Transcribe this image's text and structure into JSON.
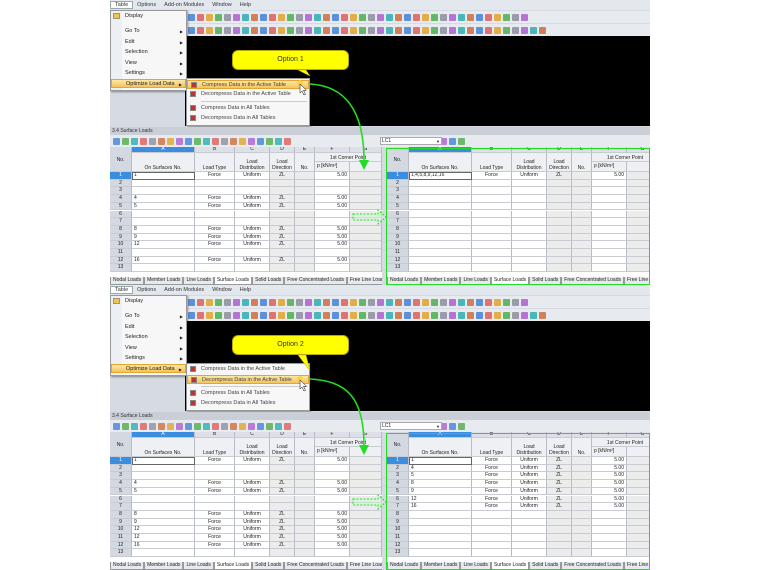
{
  "menubar": [
    "Table",
    "Options",
    "Add-on Modules",
    "Window",
    "Help"
  ],
  "menu": [
    {
      "label": "Display",
      "sub": false
    },
    {
      "label": "Go To",
      "sub": true
    },
    {
      "label": "Edit",
      "sub": true
    },
    {
      "label": "Selection",
      "sub": true
    },
    {
      "label": "View",
      "sub": true
    },
    {
      "label": "Settings",
      "sub": true
    },
    {
      "label": "Optimize Load Data",
      "sub": true
    }
  ],
  "submenu": [
    "Compress Data in the Active Table",
    "Decompress Data in the Active Table",
    "Compress Data in All Tables",
    "Decompress Data in All Tables"
  ],
  "window_title": "3.4 Surface Loads",
  "load_case": "LC1",
  "column_letters": [
    "A",
    "B",
    "C",
    "D",
    "E",
    "F",
    "G"
  ],
  "headers": {
    "no": "No.",
    "a": "On Surfaces No.",
    "b": "Load Type",
    "c1": "Load",
    "c2": "Distribution",
    "d1": "Load",
    "d2": "Direction",
    "e": "No.",
    "f1": "1st Corner Point",
    "f2": "p [kN/m²]"
  },
  "tabs": [
    "Nodal Loads",
    "Member Loads",
    "Line Loads",
    "Surface Loads",
    "Solid Loads",
    "Free Concentrated Loads",
    "Free Line Loads"
  ],
  "active_tab": "Surface Loads",
  "colors": {
    "accent_green": "#22dd22",
    "callout": "#ffff00",
    "highlight": "#f6c35a",
    "selected_row": "#3b8de0"
  },
  "panels": [
    {
      "callout": "Option 1",
      "highlighted_submenu": 0,
      "left_rows": [
        [
          "1",
          "1",
          "Force",
          "Uniform",
          "ZL",
          "",
          "5.00"
        ],
        [
          "2",
          "",
          "",
          "",
          "",
          "",
          ""
        ],
        [
          "3",
          "",
          "",
          "",
          "",
          "",
          ""
        ],
        [
          "4",
          "4",
          "Force",
          "Uniform",
          "ZL",
          "",
          "5.00"
        ],
        [
          "5",
          "5",
          "Force",
          "Uniform",
          "ZL",
          "",
          "5.00"
        ],
        [
          "6",
          "",
          "",
          "",
          "",
          "",
          ""
        ],
        [
          "7",
          "",
          "",
          "",
          "",
          "",
          ""
        ],
        [
          "8",
          "8",
          "Force",
          "Uniform",
          "ZL",
          "",
          "5.00"
        ],
        [
          "9",
          "9",
          "Force",
          "Uniform",
          "ZL",
          "",
          "5.00"
        ],
        [
          "10",
          "12",
          "Force",
          "Uniform",
          "ZL",
          "",
          "5.00"
        ],
        [
          "11",
          "",
          "",
          "",
          "",
          "",
          ""
        ],
        [
          "12",
          "16",
          "Force",
          "Uniform",
          "ZL",
          "",
          "5.00"
        ],
        [
          "13",
          "",
          "",
          "",
          "",
          "",
          ""
        ]
      ],
      "right_rows": [
        [
          "1",
          "1,4,5,8,9,12,16",
          "Force",
          "Uniform",
          "ZL",
          "",
          "5.00"
        ],
        [
          "2",
          "",
          "",
          "",
          "",
          "",
          ""
        ],
        [
          "3",
          "",
          "",
          "",
          "",
          "",
          ""
        ],
        [
          "4",
          "",
          "",
          "",
          "",
          "",
          ""
        ],
        [
          "5",
          "",
          "",
          "",
          "",
          "",
          ""
        ],
        [
          "6",
          "",
          "",
          "",
          "",
          "",
          ""
        ],
        [
          "7",
          "",
          "",
          "",
          "",
          "",
          ""
        ],
        [
          "8",
          "",
          "",
          "",
          "",
          "",
          ""
        ],
        [
          "9",
          "",
          "",
          "",
          "",
          "",
          ""
        ],
        [
          "10",
          "",
          "",
          "",
          "",
          "",
          ""
        ],
        [
          "11",
          "",
          "",
          "",
          "",
          "",
          ""
        ],
        [
          "12",
          "",
          "",
          "",
          "",
          "",
          ""
        ],
        [
          "13",
          "",
          "",
          "",
          "",
          "",
          ""
        ]
      ]
    },
    {
      "callout": "Option 2",
      "highlighted_submenu": 1,
      "left_rows": [
        [
          "1",
          "1",
          "Force",
          "Uniform",
          "ZL",
          "",
          "5.00"
        ],
        [
          "2",
          "",
          "",
          "",
          "",
          "",
          ""
        ],
        [
          "3",
          "",
          "",
          "",
          "",
          "",
          ""
        ],
        [
          "4",
          "4",
          "Force",
          "Uniform",
          "ZL",
          "",
          "5.00"
        ],
        [
          "5",
          "5",
          "Force",
          "Uniform",
          "ZL",
          "",
          "5.00"
        ],
        [
          "6",
          "",
          "",
          "",
          "",
          "",
          ""
        ],
        [
          "7",
          "",
          "",
          "",
          "",
          "",
          ""
        ],
        [
          "8",
          "8",
          "Force",
          "Uniform",
          "ZL",
          "",
          "5.00"
        ],
        [
          "9",
          "9",
          "Force",
          "Uniform",
          "ZL",
          "",
          "5.00"
        ],
        [
          "10",
          "12",
          "Force",
          "Uniform",
          "ZL",
          "",
          "5.00"
        ],
        [
          "11",
          "12",
          "Force",
          "Uniform",
          "ZL",
          "",
          "5.00"
        ],
        [
          "12",
          "16",
          "Force",
          "Uniform",
          "ZL",
          "",
          "5.00"
        ],
        [
          "13",
          "",
          "",
          "",
          "",
          "",
          ""
        ]
      ],
      "right_rows": [
        [
          "1",
          "1",
          "Force",
          "Uniform",
          "ZL",
          "",
          "5.00"
        ],
        [
          "2",
          "4",
          "Force",
          "Uniform",
          "ZL",
          "",
          "5.00"
        ],
        [
          "3",
          "5",
          "Force",
          "Uniform",
          "ZL",
          "",
          "5.00"
        ],
        [
          "4",
          "8",
          "Force",
          "Uniform",
          "ZL",
          "",
          "5.00"
        ],
        [
          "5",
          "9",
          "Force",
          "Uniform",
          "ZL",
          "",
          "5.00"
        ],
        [
          "6",
          "12",
          "Force",
          "Uniform",
          "ZL",
          "",
          "5.00"
        ],
        [
          "7",
          "16",
          "Force",
          "Uniform",
          "ZL",
          "",
          "5.00"
        ],
        [
          "8",
          "",
          "",
          "",
          "",
          "",
          ""
        ],
        [
          "9",
          "",
          "",
          "",
          "",
          "",
          ""
        ],
        [
          "10",
          "",
          "",
          "",
          "",
          "",
          ""
        ],
        [
          "11",
          "",
          "",
          "",
          "",
          "",
          ""
        ],
        [
          "12",
          "",
          "",
          "",
          "",
          "",
          ""
        ],
        [
          "13",
          "",
          "",
          "",
          "",
          "",
          ""
        ]
      ]
    }
  ]
}
